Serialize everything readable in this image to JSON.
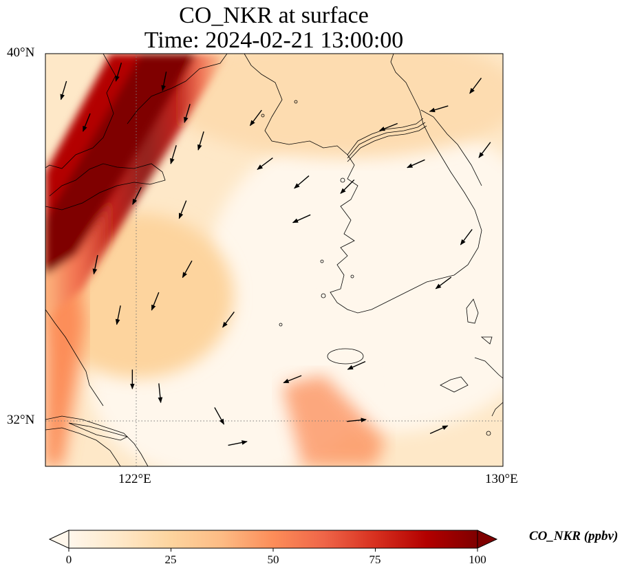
{
  "title": {
    "line1": "CO_NKR at surface",
    "line2": "Time: 2024-02-21 13:00:00"
  },
  "axes": {
    "lat_labels": [
      "40°N",
      "32°N"
    ],
    "lon_labels": [
      "122°E",
      "130°E"
    ],
    "extent": {
      "lon_min": 120,
      "lon_max": 130,
      "lat_min": 31,
      "lat_max": 40
    }
  },
  "colorbar": {
    "label": "CO_NKR (ppbv)",
    "ticks": [
      "0",
      "25",
      "50",
      "75",
      "100"
    ],
    "range": [
      0,
      100
    ],
    "colormap": "OrRd",
    "extend": "both",
    "colors": [
      "#fff7ec",
      "#fee8c8",
      "#fdd49e",
      "#fdbb84",
      "#fc8d59",
      "#ef6548",
      "#d7301f",
      "#b30000",
      "#7f0000"
    ]
  },
  "chart_data": {
    "type": "heatmap",
    "title": "CO_NKR at surface",
    "subtitle": "Time: 2024-02-21 13:00:00",
    "xlabel": "",
    "ylabel": "",
    "xlim": [
      120,
      130
    ],
    "ylim": [
      31,
      40
    ],
    "x_ticks": [
      "122°E",
      "130°E"
    ],
    "y_ticks": [
      "40°N",
      "32°N"
    ],
    "grid": "dotted at 122°E and 32°N",
    "value_range": [
      0,
      100
    ],
    "features": [
      {
        "name": "high-concentration plume",
        "lon_start": 120.0,
        "lat_start": 34.5,
        "lon_end": 123.0,
        "lat_end": 40.0,
        "peak_value": 100
      },
      {
        "name": "moderate band",
        "lon_start": 125.5,
        "lat_start": 31.0,
        "lon_end": 126.8,
        "lat_end": 32.6,
        "peak_value": 45
      },
      {
        "name": "background",
        "value": 15
      }
    ],
    "wind_vectors": [
      {
        "lon": 120.4,
        "lat": 39.2,
        "u": -0.3,
        "v": -1.0
      },
      {
        "lon": 120.9,
        "lat": 38.5,
        "u": -0.4,
        "v": -1.0
      },
      {
        "lon": 121.6,
        "lat": 39.6,
        "u": -0.3,
        "v": -1.0
      },
      {
        "lon": 122.6,
        "lat": 39.4,
        "u": -0.2,
        "v": -1.0
      },
      {
        "lon": 123.1,
        "lat": 38.7,
        "u": -0.3,
        "v": -1.0
      },
      {
        "lon": 122.8,
        "lat": 37.8,
        "u": -0.3,
        "v": -1.0
      },
      {
        "lon": 123.4,
        "lat": 38.1,
        "u": -0.3,
        "v": -1.0
      },
      {
        "lon": 122.0,
        "lat": 36.9,
        "u": -0.5,
        "v": -1.0
      },
      {
        "lon": 123.0,
        "lat": 36.6,
        "u": -0.4,
        "v": -1.0
      },
      {
        "lon": 124.6,
        "lat": 38.6,
        "u": -0.6,
        "v": -0.8
      },
      {
        "lon": 124.8,
        "lat": 37.6,
        "u": -0.8,
        "v": -0.6
      },
      {
        "lon": 125.6,
        "lat": 37.2,
        "u": -0.7,
        "v": -0.6
      },
      {
        "lon": 125.6,
        "lat": 36.4,
        "u": -0.9,
        "v": -0.4
      },
      {
        "lon": 126.6,
        "lat": 37.1,
        "u": -0.7,
        "v": -0.7
      },
      {
        "lon": 127.5,
        "lat": 38.4,
        "u": -1.0,
        "v": -0.4
      },
      {
        "lon": 128.1,
        "lat": 37.6,
        "u": -0.9,
        "v": -0.4
      },
      {
        "lon": 128.6,
        "lat": 38.8,
        "u": -1.0,
        "v": -0.3
      },
      {
        "lon": 129.4,
        "lat": 39.3,
        "u": -0.6,
        "v": -0.8
      },
      {
        "lon": 129.6,
        "lat": 37.9,
        "u": -0.6,
        "v": -0.8
      },
      {
        "lon": 129.2,
        "lat": 36.0,
        "u": -0.6,
        "v": -0.8
      },
      {
        "lon": 128.7,
        "lat": 35.0,
        "u": -0.8,
        "v": -0.6
      },
      {
        "lon": 121.1,
        "lat": 35.4,
        "u": -0.2,
        "v": -1.0
      },
      {
        "lon": 121.6,
        "lat": 34.3,
        "u": -0.2,
        "v": -1.0
      },
      {
        "lon": 122.4,
        "lat": 34.6,
        "u": -0.4,
        "v": -1.0
      },
      {
        "lon": 123.1,
        "lat": 35.3,
        "u": -0.5,
        "v": -0.9
      },
      {
        "lon": 124.0,
        "lat": 34.2,
        "u": -0.6,
        "v": -0.8
      },
      {
        "lon": 126.8,
        "lat": 33.2,
        "u": -0.9,
        "v": -0.4
      },
      {
        "lon": 125.4,
        "lat": 32.9,
        "u": -1.0,
        "v": -0.4
      },
      {
        "lon": 121.9,
        "lat": 32.9,
        "u": 0.0,
        "v": -1.0
      },
      {
        "lon": 122.5,
        "lat": 32.6,
        "u": 0.1,
        "v": -1.0
      },
      {
        "lon": 123.8,
        "lat": 32.1,
        "u": 0.5,
        "v": -0.9
      },
      {
        "lon": 124.2,
        "lat": 31.5,
        "u": 1.0,
        "v": 0.2
      },
      {
        "lon": 126.8,
        "lat": 32.0,
        "u": 1.0,
        "v": 0.1
      },
      {
        "lon": 128.6,
        "lat": 31.8,
        "u": 0.9,
        "v": 0.4
      }
    ]
  }
}
